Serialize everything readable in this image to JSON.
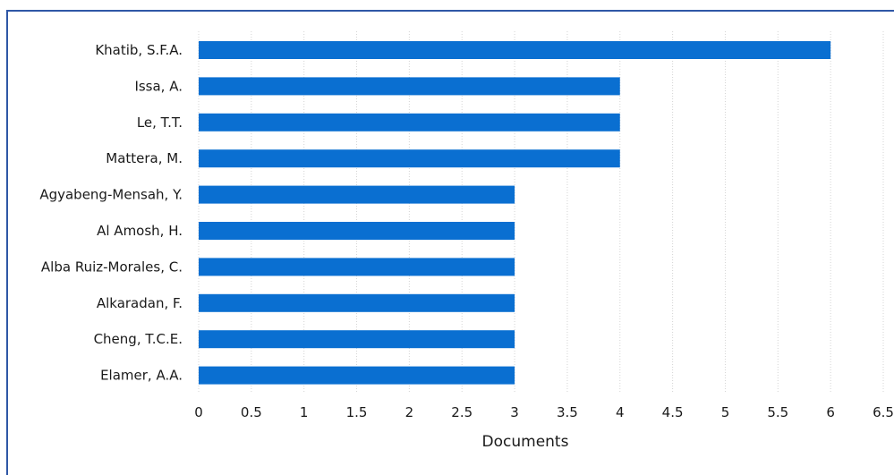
{
  "chart_data": {
    "type": "bar",
    "orientation": "horizontal",
    "categories": [
      "Khatib, S.F.A.",
      "Issa, A.",
      "Le, T.T.",
      "Mattera, M.",
      "Agyabeng-Mensah, Y.",
      "Al Amosh, H.",
      "Alba Ruiz-Morales, C.",
      "Alkaradan, F.",
      "Cheng, T.C.E.",
      "Elamer, A.A."
    ],
    "values": [
      6,
      4,
      4,
      4,
      3,
      3,
      3,
      3,
      3,
      3
    ],
    "title": "",
    "xlabel": "Documents",
    "ylabel": "",
    "xlim": [
      0,
      6.5
    ],
    "xticks": [
      "0",
      "0.5",
      "1",
      "1.5",
      "2",
      "2.5",
      "3",
      "3.5",
      "4",
      "4.5",
      "5",
      "5.5",
      "6",
      "6.5"
    ],
    "grid": "vertical-dotted",
    "bar_color": "#0a6fd1",
    "frame_color": "#2f57a6"
  }
}
